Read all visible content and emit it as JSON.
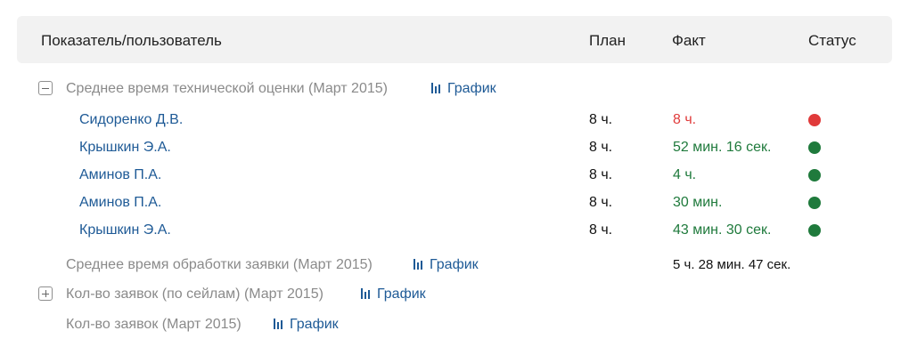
{
  "header": {
    "indicator": "Показатель/пользователь",
    "plan": "План",
    "fact": "Факт",
    "status": "Статус"
  },
  "groups": [
    {
      "title": "Среднее время технической оценки (Март 2015)",
      "chart_label": "График",
      "expanded": true,
      "toggle_icon": "minus-box-icon",
      "rows": [
        {
          "user": "Сидоренко Д.В.",
          "plan": "8 ч.",
          "fact": "8 ч.",
          "status": "red",
          "status_color": "#e03a3a"
        },
        {
          "user": "Крышкин Э.А.",
          "plan": "8 ч.",
          "fact": "52 мин. 16 сек.",
          "status": "green",
          "status_color": "#1f7a3c"
        },
        {
          "user": "Аминов П.А.",
          "plan": "8 ч.",
          "fact": "4 ч.",
          "status": "green",
          "status_color": "#1f7a3c"
        },
        {
          "user": "Аминов П.А.",
          "plan": "8 ч.",
          "fact": "30 мин.",
          "status": "green",
          "status_color": "#1f7a3c"
        },
        {
          "user": "Крышкин Э.А.",
          "plan": "8 ч.",
          "fact": "43 мин. 30 сек.",
          "status": "green",
          "status_color": "#1f7a3c"
        }
      ]
    },
    {
      "title": "Среднее время обработки заявки (Март 2015)",
      "chart_label": "График",
      "fact": "5 ч. 28 мин. 47 сек."
    },
    {
      "title": "Кол-во заявок (по сейлам) (Март 2015)",
      "chart_label": "График",
      "expanded": false,
      "toggle_icon": "plus-box-icon"
    },
    {
      "title": "Кол-во заявок (Март 2015)",
      "chart_label": "График"
    }
  ],
  "colors": {
    "link": "#1e5a96",
    "muted": "#8a8a8a",
    "red": "#e03a3a",
    "green": "#1f7a3c",
    "header_bg": "#f2f2f2"
  }
}
